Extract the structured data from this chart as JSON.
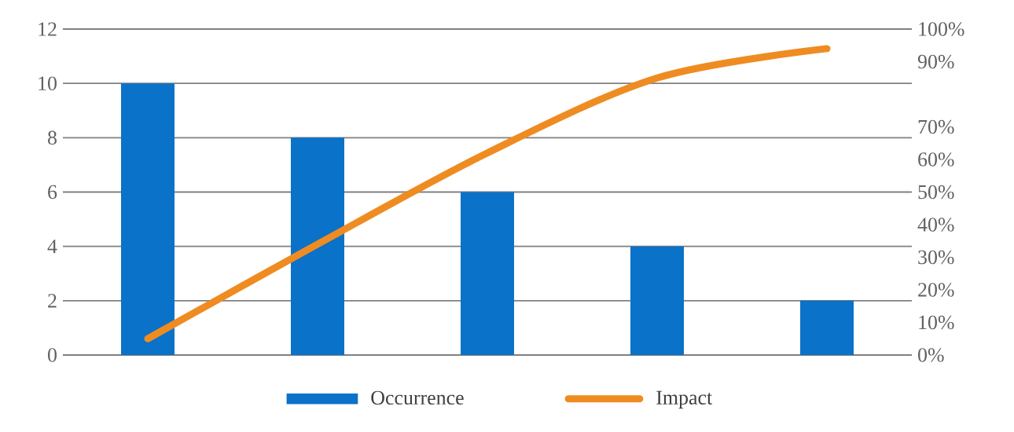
{
  "chart_data": {
    "type": "bar",
    "categories": [
      null,
      null,
      null,
      null,
      null
    ],
    "series": [
      {
        "name": "Occurrence",
        "color": "#0a72c8",
        "values": [
          10,
          8,
          6,
          4,
          2
        ]
      },
      {
        "name": "Impact",
        "type": "line",
        "axis": "y2",
        "color": "#ee8c22",
        "values": [
          5,
          34,
          62,
          85,
          94
        ]
      }
    ],
    "ylim": [
      0,
      12
    ],
    "yticks": [
      0,
      2,
      4,
      6,
      8,
      10,
      12
    ],
    "y2lim": [
      0,
      100
    ],
    "y2ticks": [
      {
        "value": 0,
        "label": "0%"
      },
      {
        "value": 10,
        "label": "10%"
      },
      {
        "value": 20,
        "label": "20%"
      },
      {
        "value": 30,
        "label": "30%"
      },
      {
        "value": 40,
        "label": "40%"
      },
      {
        "value": 50,
        "label": "50%"
      },
      {
        "value": 60,
        "label": "60%"
      },
      {
        "value": 70,
        "label": "70%"
      },
      {
        "value": 90,
        "label": "90%"
      },
      {
        "value": 100,
        "label": "100%"
      }
    ],
    "grid": "y",
    "legend": "bottom",
    "marker": "none"
  }
}
